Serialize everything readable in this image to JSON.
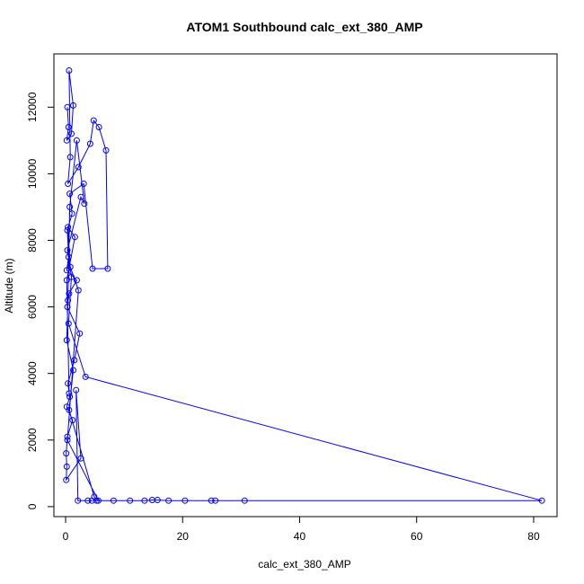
{
  "chart_data": {
    "type": "line",
    "title": "ATOM1 Southbound calc_ext_380_AMP",
    "xlabel": "calc_ext_380_AMP",
    "ylabel": "Altitude (m)",
    "xlim": [
      -2,
      84
    ],
    "ylim": [
      -300,
      13600
    ],
    "xticks": [
      0,
      20,
      40,
      60,
      80
    ],
    "yticks": [
      0,
      2000,
      4000,
      6000,
      8000,
      10000,
      12000
    ],
    "grid": false,
    "marker": "open-circle",
    "color": "#0000ff",
    "series": [
      {
        "points": [
          [
            0.3,
            12000
          ],
          [
            0.5,
            11400
          ],
          [
            0.2,
            11000
          ],
          [
            1.0,
            11200
          ],
          [
            1.3,
            12050
          ],
          [
            0.6,
            13100
          ],
          [
            0.8,
            10500
          ],
          [
            0.4,
            9700
          ],
          [
            2.2,
            10200
          ],
          [
            4.2,
            10900
          ],
          [
            4.8,
            11600
          ],
          [
            5.7,
            11400
          ],
          [
            6.9,
            10700
          ],
          [
            7.2,
            7150
          ],
          [
            4.6,
            7150
          ],
          [
            3.1,
            9700
          ],
          [
            0.7,
            9400
          ],
          [
            1.1,
            8800
          ],
          [
            0.3,
            8300
          ],
          [
            0.5,
            7500
          ],
          [
            0.2,
            7100
          ],
          [
            1.9,
            6800
          ],
          [
            0.6,
            6400
          ],
          [
            0.3,
            6000
          ],
          [
            2.4,
            5200
          ],
          [
            1.5,
            4400
          ],
          [
            0.4,
            3700
          ],
          [
            0.7,
            3300
          ],
          [
            0.2,
            3000
          ],
          [
            1.2,
            2600
          ],
          [
            0.3,
            2100
          ],
          [
            0.1,
            1600
          ],
          [
            0.2,
            1200
          ],
          [
            0.1,
            800
          ],
          [
            2.6,
            1450
          ],
          [
            1.8,
            3500
          ],
          [
            2.1,
            180
          ],
          [
            3.8,
            180
          ],
          [
            4.5,
            180
          ],
          [
            5.3,
            180
          ],
          [
            8.2,
            180
          ],
          [
            11.0,
            180
          ],
          [
            13.5,
            180
          ],
          [
            14.8,
            200
          ],
          [
            15.7,
            200
          ],
          [
            17.6,
            180
          ],
          [
            20.4,
            180
          ],
          [
            24.9,
            180
          ],
          [
            25.6,
            180
          ],
          [
            30.6,
            180
          ],
          [
            81.4,
            180
          ],
          [
            3.4,
            3900
          ],
          [
            0.5,
            5500
          ],
          [
            1.0,
            6900
          ],
          [
            0.3,
            7700
          ],
          [
            2.6,
            9300
          ],
          [
            3.2,
            9100
          ],
          [
            1.9,
            11000
          ],
          [
            0.7,
            9000
          ],
          [
            0.4,
            6200
          ],
          [
            0.2,
            5000
          ],
          [
            1.3,
            4100
          ],
          [
            0.6,
            2900
          ],
          [
            4.9,
            300
          ],
          [
            5.6,
            180
          ],
          [
            0.3,
            2000
          ],
          [
            2.2,
            6500
          ],
          [
            0.8,
            7200
          ],
          [
            0.4,
            8400
          ],
          [
            1.6,
            8100
          ],
          [
            0.2,
            6800
          ],
          [
            0.6,
            3400
          ]
        ]
      }
    ]
  }
}
